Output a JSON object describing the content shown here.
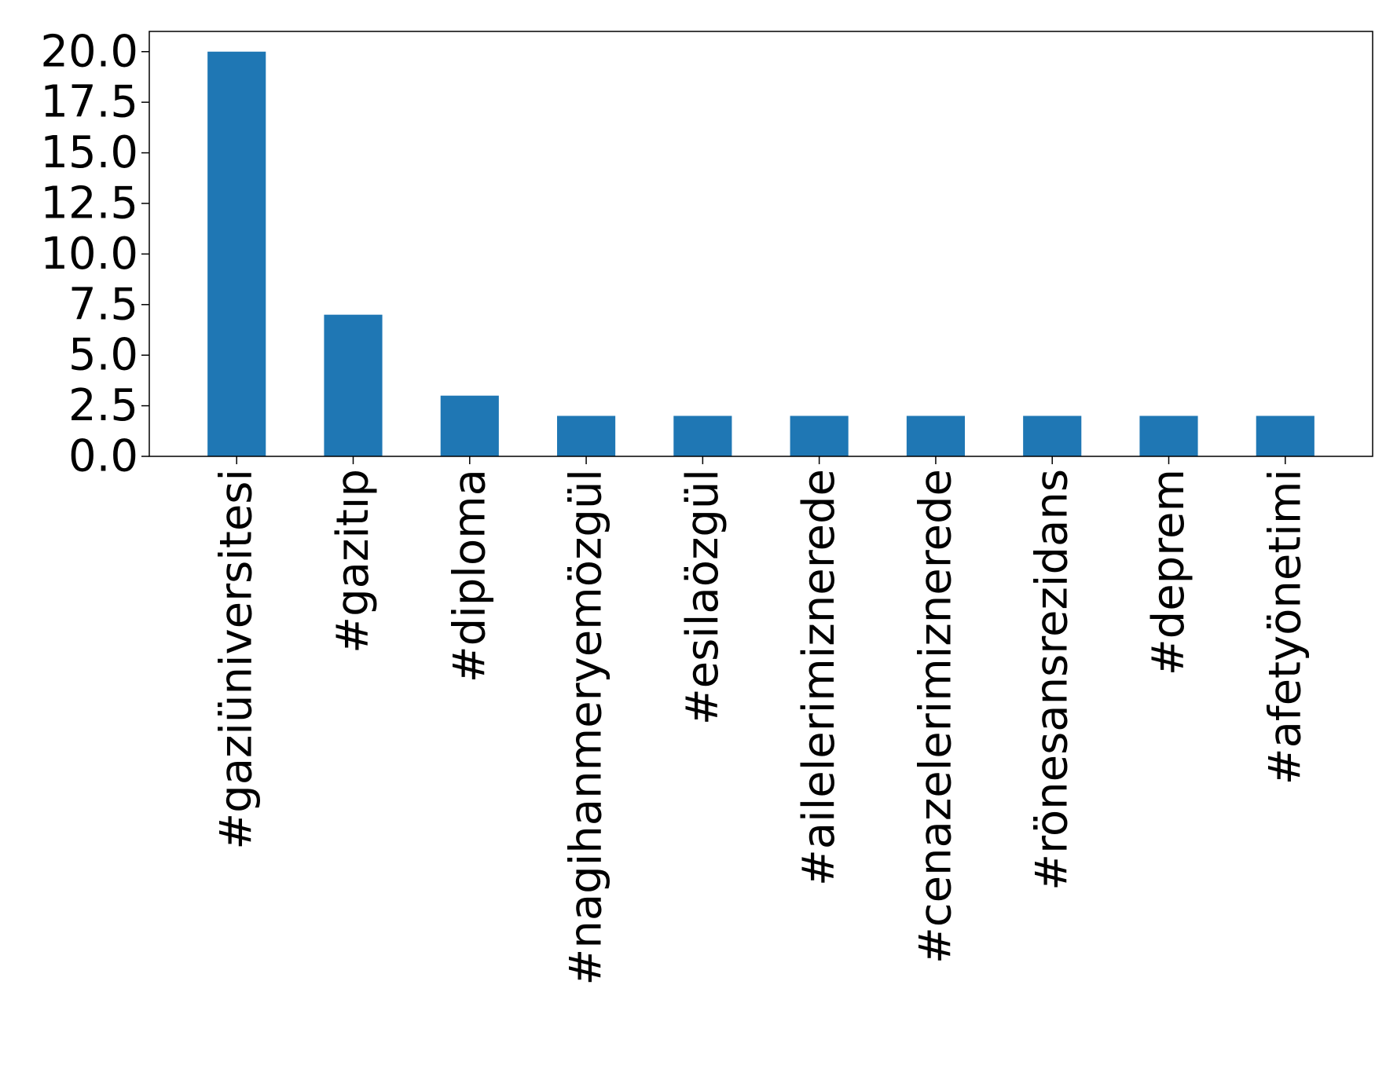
{
  "chart_data": {
    "type": "bar",
    "categories": [
      "#gaziüniversitesi",
      "#gazitıp",
      "#diploma",
      "#nagihanmeryemözgül",
      "#esilaözgül",
      "#ailelerimiznerede",
      "#cenazelerimiznerede",
      "#rönesansrezidans",
      "#deprem",
      "#afetyönetimi"
    ],
    "values": [
      20,
      7,
      3,
      2,
      2,
      2,
      2,
      2,
      2,
      2
    ],
    "title": "",
    "xlabel": "",
    "ylabel": "",
    "ylim": [
      0,
      21
    ],
    "yticks": [
      "0.0",
      "2.5",
      "5.0",
      "7.5",
      "10.0",
      "12.5",
      "15.0",
      "17.5",
      "20.0"
    ],
    "bar_color": "#1f77b4",
    "grid": false,
    "legend": "none"
  }
}
